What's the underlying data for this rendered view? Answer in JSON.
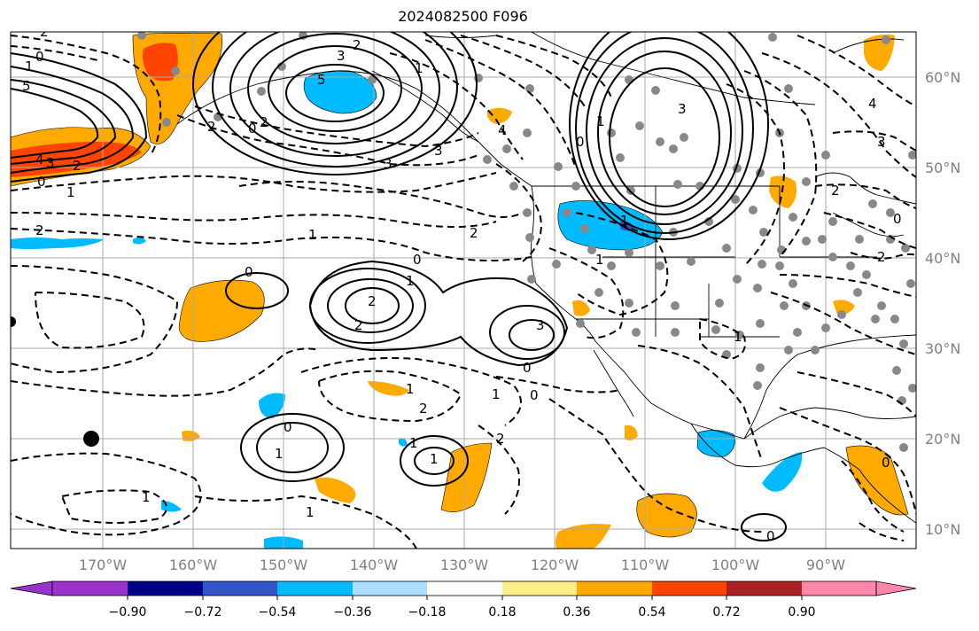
{
  "title": "2024082500 F096",
  "map": {
    "lon_labels": [
      "170°W",
      "160°W",
      "150°W",
      "140°W",
      "130°W",
      "120°W",
      "110°W",
      "100°W",
      "90°W"
    ],
    "lat_labels": [
      "60°N",
      "50°N",
      "40°N",
      "30°N",
      "20°N",
      "10°N"
    ],
    "grid": true,
    "label_color": "#808080",
    "contour_labels": [
      "2",
      "0",
      "1",
      "5",
      "4",
      "3",
      "2",
      "1",
      "0",
      "2",
      "3",
      "5",
      "2",
      "1",
      "2",
      "3",
      "0",
      "4",
      "2",
      "3",
      "3",
      "1",
      "0",
      "2",
      "1",
      "1",
      "0",
      "1",
      "2",
      "2",
      "3",
      "0",
      "0",
      "1",
      "2",
      "1",
      "0",
      "1",
      "1",
      "1",
      "1",
      "0",
      "1",
      "2",
      "1",
      "1",
      "0",
      "2",
      "0",
      "0",
      "2",
      "3",
      "4"
    ]
  },
  "colorbar": {
    "ticks": [
      "−0.90",
      "−0.72",
      "−0.54",
      "−0.36",
      "−0.18",
      "0.18",
      "0.36",
      "0.54",
      "0.72",
      "0.90"
    ],
    "colors": [
      "#9933cc",
      "#000088",
      "#3355cc",
      "#00bbff",
      "#aaddff",
      "#ffffff",
      "#ffee88",
      "#ffaa00",
      "#ff4400",
      "#aa2222",
      "#ff88aa"
    ],
    "extend": "both"
  }
}
